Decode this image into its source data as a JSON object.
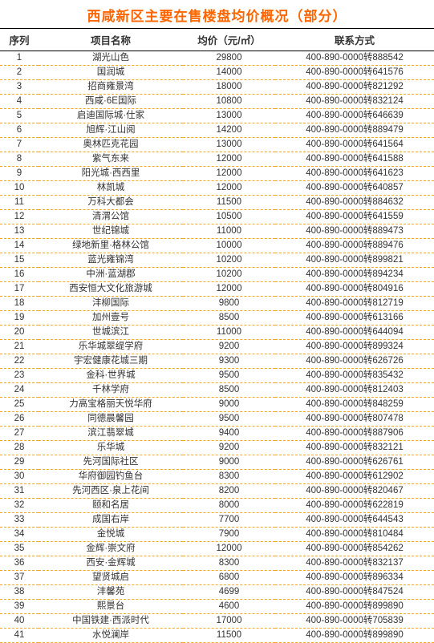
{
  "title": "西咸新区主要在售楼盘均价概况（部分）",
  "title_color": "#ff6600",
  "dash_color": "#f5a623",
  "header_border_color": "#000000",
  "background_color": "#ffffff",
  "text_color": "#333333",
  "header_fontsize": 12.5,
  "body_fontsize": 11.5,
  "row_height": 18.0,
  "columns": [
    {
      "label": "序列",
      "width": 48,
      "align": "center"
    },
    {
      "label": "项目名称",
      "width": 180,
      "align": "center"
    },
    {
      "label": "均价（元/㎡）",
      "width": 115,
      "align": "center"
    },
    {
      "label": "联系方式",
      "width": 198,
      "align": "center"
    }
  ],
  "rows": [
    [
      "1",
      "湖光山色",
      "29800",
      "400-890-0000转888542"
    ],
    [
      "2",
      "国润城",
      "14000",
      "400-890-0000转641576"
    ],
    [
      "3",
      "招商雍景湾",
      "18000",
      "400-890-0000转821292"
    ],
    [
      "4",
      "西咸·6E国际",
      "10800",
      "400-890-0000转832124"
    ],
    [
      "5",
      "启迪国际城·仕家",
      "13000",
      "400-890-0000转646639"
    ],
    [
      "6",
      "旭辉·江山阅",
      "14200",
      "400-890-0000转889479"
    ],
    [
      "7",
      "奥林匹克花园",
      "13000",
      "400-890-0000转641564"
    ],
    [
      "8",
      "紫气东来",
      "12000",
      "400-890-0000转641588"
    ],
    [
      "9",
      "阳光城·西西里",
      "12000",
      "400-890-0000转641623"
    ],
    [
      "10",
      "林凯城",
      "12000",
      "400-890-0000转640857"
    ],
    [
      "11",
      "万科大都会",
      "11500",
      "400-890-0000转884632"
    ],
    [
      "12",
      "清渭公馆",
      "10500",
      "400-890-0000转641559"
    ],
    [
      "13",
      "世纪锦城",
      "11000",
      "400-890-0000转889473"
    ],
    [
      "14",
      "绿地新里·格林公馆",
      "10000",
      "400-890-0000转889476"
    ],
    [
      "15",
      "蓝光雍锦湾",
      "10200",
      "400-890-0000转899821"
    ],
    [
      "16",
      "中洲·蓝湖郡",
      "10200",
      "400-890-0000转894234"
    ],
    [
      "17",
      "西安恒大文化旅游城",
      "12000",
      "400-890-0000转804916"
    ],
    [
      "18",
      "沣柳国际",
      "9800",
      "400-890-0000转812719"
    ],
    [
      "19",
      "加州壹号",
      "8500",
      "400-890-0000转613166"
    ],
    [
      "20",
      "世城滨江",
      "11000",
      "400-890-0000转644094"
    ],
    [
      "21",
      "乐华城翠缇学府",
      "9200",
      "400-890-0000转899324"
    ],
    [
      "22",
      "宇宏健康花城三期",
      "9300",
      "400-890-0000转626726"
    ],
    [
      "23",
      "金科·世界城",
      "9500",
      "400-890-0000转835432"
    ],
    [
      "24",
      "千林学府",
      "8500",
      "400-890-0000转812403"
    ],
    [
      "25",
      "力高宝格丽天悦华府",
      "9000",
      "400-890-0000转848259"
    ],
    [
      "26",
      "同德晨馨园",
      "9500",
      "400-890-0000转807478"
    ],
    [
      "27",
      "滨江翡翠城",
      "9400",
      "400-890-0000转887906"
    ],
    [
      "28",
      "乐华城",
      "9200",
      "400-890-0000转832121"
    ],
    [
      "29",
      "先河国际社区",
      "9000",
      "400-890-0000转626761"
    ],
    [
      "30",
      "华府御园钓鱼台",
      "8300",
      "400-890-0000转612902"
    ],
    [
      "31",
      "先河西区·泉上花间",
      "8200",
      "400-890-0000转820467"
    ],
    [
      "32",
      "颐和名居",
      "8000",
      "400-890-0000转622819"
    ],
    [
      "33",
      "成国右岸",
      "7700",
      "400-890-0000转644543"
    ],
    [
      "34",
      "金悦城",
      "7900",
      "400-890-0000转810484"
    ],
    [
      "35",
      "金辉·崇文府",
      "12000",
      "400-890-0000转854262"
    ],
    [
      "36",
      "西安·金辉城",
      "8300",
      "400-890-0000转832137"
    ],
    [
      "37",
      "望贤城启",
      "6800",
      "400-890-0000转896334"
    ],
    [
      "38",
      "沣馨苑",
      "4699",
      "400-890-0000转847524"
    ],
    [
      "39",
      "熙景台",
      "4600",
      "400-890-0000转899890"
    ],
    [
      "40",
      "中国铁建·西派时代",
      "17000",
      "400-890-0000转705839"
    ],
    [
      "41",
      "水悦澜岸",
      "11500",
      "400-890-0000转899890"
    ]
  ]
}
